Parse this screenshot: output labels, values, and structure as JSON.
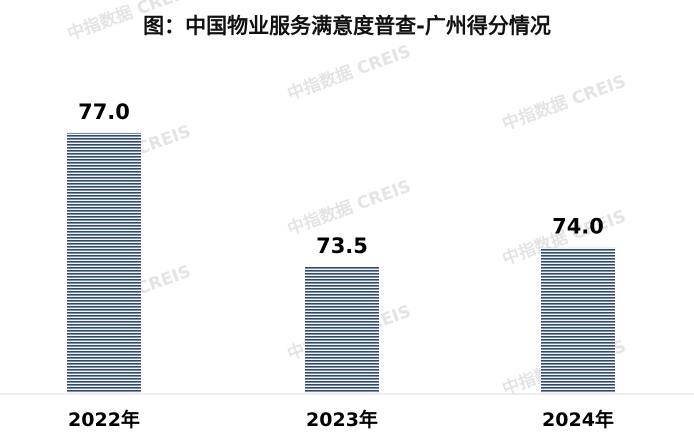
{
  "chart_data": {
    "type": "bar",
    "title": "图：中国物业服务满意度普查-广州得分情况",
    "categories": [
      "2022年",
      "2023年",
      "2024年"
    ],
    "values": [
      77.0,
      73.5,
      74.0
    ],
    "value_labels": [
      "77.0",
      "73.5",
      "74.0"
    ],
    "ylim": [
      70.2,
      77.6
    ],
    "grid": false,
    "legend": "none",
    "bar_color": "#2e4a6e"
  },
  "watermark": "中指数据 CREIS"
}
